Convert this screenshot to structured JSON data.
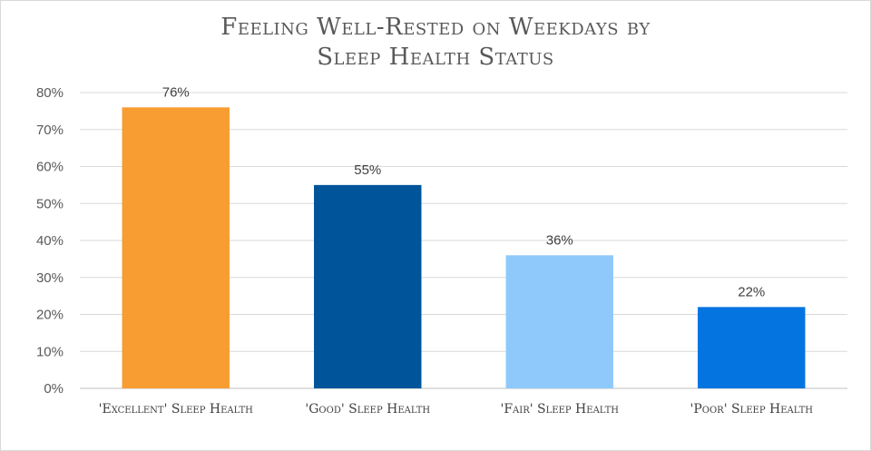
{
  "chart_data": {
    "type": "bar",
    "title": [
      "Feeling Well-Rested on Weekdays by",
      "Sleep Health Status"
    ],
    "categories": [
      "'Excellent' Sleep Health",
      "'Good' Sleep Health",
      "'Fair' Sleep Health",
      "'Poor' Sleep Health"
    ],
    "values": [
      76,
      55,
      36,
      22
    ],
    "data_labels": [
      "76%",
      "55%",
      "36%",
      "22%"
    ],
    "bar_colors": [
      "#f79d31",
      "#00549a",
      "#8fc9fb",
      "#0474e0"
    ],
    "ylim": [
      0,
      80
    ],
    "yticks": [
      0,
      10,
      20,
      30,
      40,
      50,
      60,
      70,
      80
    ],
    "ytick_labels": [
      "0%",
      "10%",
      "20%",
      "30%",
      "40%",
      "50%",
      "60%",
      "70%",
      "80%"
    ],
    "xlabel": "",
    "ylabel": "",
    "grid": true,
    "legend": "none"
  }
}
